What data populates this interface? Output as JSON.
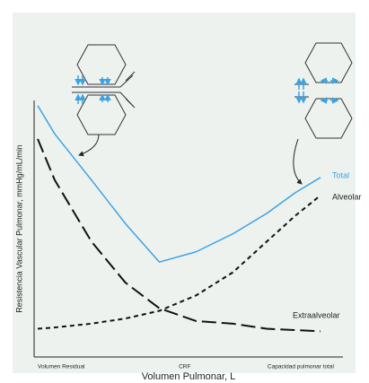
{
  "chart_data": {
    "type": "line",
    "x_label": "Volumen Pulmonar, L",
    "y_label": "Resistencia Vascular Pulmonar, mmHg/mL/min",
    "x": [
      0,
      6,
      19,
      31,
      43,
      56,
      69,
      81,
      91,
      100
    ],
    "xlim": [
      0,
      100
    ],
    "xticks": [
      {
        "value": 0,
        "label": "Volumen Residual"
      },
      {
        "value": 52,
        "label": "CRF"
      },
      {
        "value": 100,
        "label": "Capacidad pulmonar total"
      }
    ],
    "ylim": [
      0,
      100
    ],
    "series": [
      {
        "name": "Total",
        "color": "#3ba3e3",
        "dash": "solid",
        "values": [
          98,
          87,
          69,
          52,
          37,
          41,
          48,
          56,
          64,
          70
        ]
      },
      {
        "name": "Alveolar",
        "color": "#111111",
        "dash": "short",
        "values": [
          11,
          11.5,
          13,
          15,
          18,
          24,
          33,
          45,
          55,
          63
        ]
      },
      {
        "name": "Extraalveolar",
        "color": "#111111",
        "dash": "long",
        "values": [
          85,
          69,
          45,
          29,
          19,
          14,
          13,
          11,
          10.5,
          10
        ]
      }
    ]
  }
}
